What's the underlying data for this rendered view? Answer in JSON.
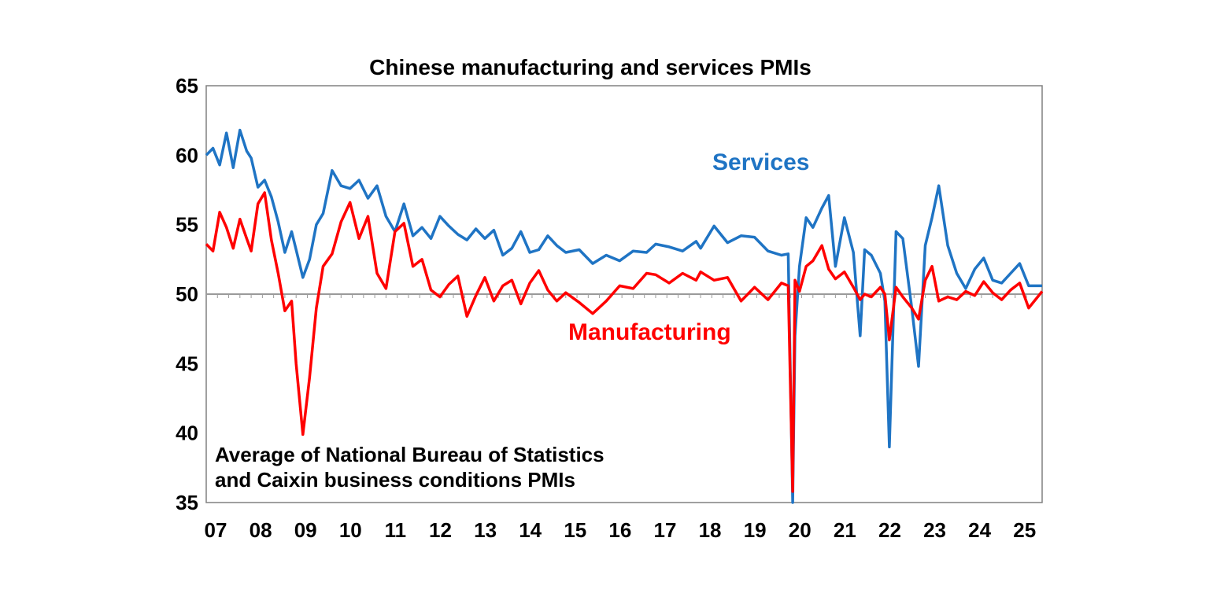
{
  "chart_data": {
    "type": "line",
    "title": "Chinese manufacturing and services PMIs",
    "note_lines": [
      "Average of National Bureau of Statistics",
      "and Caixin business conditions PMIs"
    ],
    "ylim": [
      35,
      65
    ],
    "y_ticks": [
      "35",
      "40",
      "45",
      "50",
      "55",
      "60",
      "65"
    ],
    "x_tick_labels": [
      "07",
      "08",
      "09",
      "10",
      "11",
      "12",
      "13",
      "14",
      "15",
      "16",
      "17",
      "18",
      "19",
      "20",
      "21",
      "22",
      "23",
      "24",
      "25"
    ],
    "x_range": [
      2007.0,
      2025.6
    ],
    "reference_line": 50,
    "grid": false,
    "series": [
      {
        "name": "Services",
        "color": "#1f74c4",
        "x": [
          2007.0,
          2007.15,
          2007.3,
          2007.45,
          2007.6,
          2007.75,
          2007.9,
          2008.0,
          2008.15,
          2008.3,
          2008.45,
          2008.6,
          2008.75,
          2008.9,
          2009.0,
          2009.15,
          2009.3,
          2009.45,
          2009.6,
          2009.8,
          2010.0,
          2010.2,
          2010.4,
          2010.6,
          2010.8,
          2011.0,
          2011.2,
          2011.4,
          2011.6,
          2011.8,
          2012.0,
          2012.2,
          2012.4,
          2012.6,
          2012.8,
          2013.0,
          2013.2,
          2013.4,
          2013.6,
          2013.8,
          2014.0,
          2014.2,
          2014.4,
          2014.6,
          2014.8,
          2015.0,
          2015.3,
          2015.6,
          2015.9,
          2016.2,
          2016.5,
          2016.8,
          2017.0,
          2017.3,
          2017.6,
          2017.9,
          2018.0,
          2018.3,
          2018.6,
          2018.9,
          2019.2,
          2019.5,
          2019.8,
          2019.95,
          2020.05,
          2020.1,
          2020.2,
          2020.35,
          2020.5,
          2020.7,
          2020.85,
          2021.0,
          2021.2,
          2021.4,
          2021.55,
          2021.65,
          2021.8,
          2022.0,
          2022.1,
          2022.2,
          2022.35,
          2022.5,
          2022.7,
          2022.85,
          2023.0,
          2023.15,
          2023.3,
          2023.5,
          2023.7,
          2023.9,
          2024.1,
          2024.3,
          2024.5,
          2024.7,
          2024.9,
          2025.1,
          2025.3,
          2025.6
        ],
        "y": [
          60.0,
          60.5,
          59.3,
          61.6,
          59.1,
          61.8,
          60.3,
          59.8,
          57.7,
          58.2,
          57.0,
          55.2,
          53.0,
          54.5,
          53.2,
          51.2,
          52.5,
          55.0,
          55.8,
          58.9,
          57.8,
          57.6,
          58.2,
          56.9,
          57.8,
          55.6,
          54.5,
          56.5,
          54.2,
          54.8,
          54.0,
          55.6,
          54.9,
          54.3,
          53.9,
          54.7,
          54.0,
          54.6,
          52.8,
          53.3,
          54.5,
          53.0,
          53.2,
          54.2,
          53.5,
          53.0,
          53.2,
          52.2,
          52.8,
          52.4,
          53.1,
          53.0,
          53.6,
          53.4,
          53.1,
          53.8,
          53.3,
          54.9,
          53.7,
          54.2,
          54.1,
          53.1,
          52.8,
          52.9,
          35.0,
          47.0,
          52.0,
          55.5,
          54.8,
          56.2,
          57.1,
          52.0,
          55.5,
          53.0,
          47.0,
          53.2,
          52.8,
          51.5,
          49.5,
          39.0,
          54.5,
          54.0,
          49.0,
          44.8,
          53.5,
          55.5,
          57.8,
          53.5,
          51.5,
          50.4,
          51.8,
          52.6,
          51.0,
          50.8,
          51.5,
          52.2,
          50.6,
          50.6
        ]
      },
      {
        "name": "Manufacturing",
        "color": "#ff0000",
        "x": [
          2007.0,
          2007.15,
          2007.3,
          2007.45,
          2007.6,
          2007.75,
          2007.9,
          2008.0,
          2008.15,
          2008.3,
          2008.45,
          2008.6,
          2008.75,
          2008.9,
          2009.0,
          2009.15,
          2009.3,
          2009.45,
          2009.6,
          2009.8,
          2010.0,
          2010.2,
          2010.4,
          2010.6,
          2010.8,
          2011.0,
          2011.2,
          2011.4,
          2011.6,
          2011.8,
          2012.0,
          2012.2,
          2012.4,
          2012.6,
          2012.8,
          2013.0,
          2013.2,
          2013.4,
          2013.6,
          2013.8,
          2014.0,
          2014.2,
          2014.4,
          2014.6,
          2014.8,
          2015.0,
          2015.3,
          2015.6,
          2015.9,
          2016.2,
          2016.5,
          2016.8,
          2017.0,
          2017.3,
          2017.6,
          2017.9,
          2018.0,
          2018.3,
          2018.6,
          2018.9,
          2019.2,
          2019.5,
          2019.8,
          2019.95,
          2020.05,
          2020.1,
          2020.2,
          2020.35,
          2020.5,
          2020.7,
          2020.85,
          2021.0,
          2021.2,
          2021.4,
          2021.55,
          2021.65,
          2021.8,
          2022.0,
          2022.1,
          2022.2,
          2022.35,
          2022.5,
          2022.7,
          2022.85,
          2023.0,
          2023.15,
          2023.3,
          2023.5,
          2023.7,
          2023.9,
          2024.1,
          2024.3,
          2024.5,
          2024.7,
          2024.9,
          2025.1,
          2025.3,
          2025.6
        ],
        "y": [
          53.6,
          53.1,
          55.9,
          54.8,
          53.3,
          55.4,
          54.0,
          53.1,
          56.5,
          57.3,
          53.9,
          51.5,
          48.8,
          49.5,
          45.0,
          39.9,
          44.0,
          49.0,
          52.0,
          52.9,
          55.2,
          56.6,
          54.0,
          55.6,
          51.5,
          50.4,
          54.5,
          55.1,
          52.0,
          52.5,
          50.3,
          49.8,
          50.7,
          51.3,
          48.4,
          49.9,
          51.2,
          49.5,
          50.6,
          51.0,
          49.3,
          50.8,
          51.7,
          50.3,
          49.5,
          50.1,
          49.4,
          48.6,
          49.5,
          50.6,
          50.4,
          51.5,
          51.4,
          50.8,
          51.5,
          51.0,
          51.6,
          51.0,
          51.2,
          49.5,
          50.5,
          49.6,
          50.8,
          50.6,
          35.8,
          51.0,
          50.2,
          52.0,
          52.4,
          53.5,
          51.8,
          51.1,
          51.6,
          50.5,
          49.6,
          50.0,
          49.8,
          50.5,
          50.0,
          46.7,
          50.5,
          49.8,
          49.0,
          48.2,
          51.0,
          52.0,
          49.5,
          49.8,
          49.6,
          50.2,
          49.9,
          50.9,
          50.1,
          49.6,
          50.3,
          50.8,
          49.0,
          50.2
        ]
      }
    ]
  }
}
